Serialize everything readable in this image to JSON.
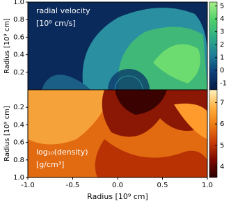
{
  "chart_data": [
    {
      "type": "heatmap",
      "title": "radial velocity",
      "subtitle": "[10⁸ cm/s]",
      "y_label": "Radius [10⁹ cm]",
      "xlim": [
        -1,
        1
      ],
      "ylim": [
        0,
        1
      ],
      "y_inverted": false,
      "yticks": [
        0.2,
        0.4,
        0.6,
        0.8,
        {
          "value": 1,
          "label": "1.0"
        }
      ],
      "clim": [
        -1.5,
        5.3
      ],
      "cticks": [
        -1,
        0,
        1,
        2,
        3,
        4,
        5
      ],
      "colormap": [
        "#071a44",
        "#0c3f7a",
        "#1f7f98",
        "#2fae86",
        "#4fd06a",
        "#a8ef8a"
      ]
    },
    {
      "type": "heatmap",
      "title": "log₁₀(density)",
      "subtitle": "[g/cm³]",
      "y_label": "Radius [10⁹ cm]",
      "x_label": "Radius [10⁹ cm]",
      "xlim": [
        -1,
        1
      ],
      "ylim": [
        0,
        1
      ],
      "y_inverted": true,
      "xticks": [
        {
          "value": -1,
          "label": "-1.0"
        },
        {
          "value": -0.5,
          "label": "-0.5"
        },
        {
          "value": 0,
          "label": "0.0"
        },
        0.5,
        {
          "value": 1,
          "label": "1.0"
        }
      ],
      "yticks": [
        0.2,
        0.4,
        0.6,
        0.8,
        {
          "value": 1,
          "label": "1.0"
        }
      ],
      "clim": [
        3.5,
        7.6
      ],
      "cticks": [
        4,
        5,
        6,
        7
      ],
      "colormap": [
        "#2a0000",
        "#7a0a00",
        "#c83a06",
        "#ee7a12",
        "#ffb040",
        "#fff2c0"
      ]
    }
  ]
}
